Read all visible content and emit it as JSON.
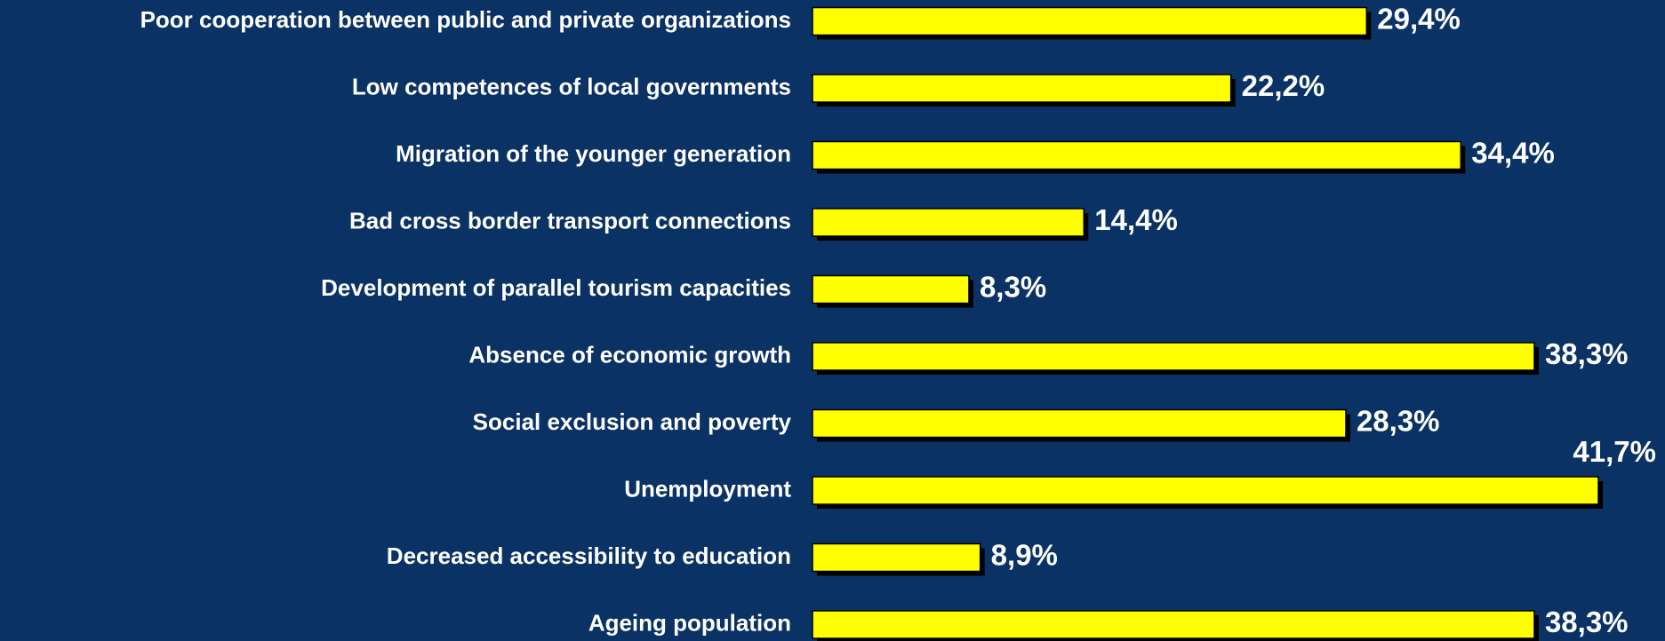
{
  "chart_data": {
    "type": "bar",
    "orientation": "horizontal",
    "categories": [
      "Poor cooperation between public and private organizations",
      "Low competences of local governments",
      "Migration of the younger generation",
      "Bad cross border transport connections",
      "Development of parallel tourism capacities",
      "Absence of economic growth",
      "Social exclusion and poverty",
      "Unemployment",
      "Decreased accessibility to education",
      "Ageing population"
    ],
    "values": [
      29.4,
      22.2,
      34.4,
      14.4,
      8.3,
      38.3,
      28.3,
      41.7,
      8.9,
      38.3
    ],
    "value_labels": [
      "29,4%",
      "22,2%",
      "34,4%",
      "14,4%",
      "8,3%",
      "38,3%",
      "28,3%",
      "41,7%",
      "8,9%",
      "38,3%"
    ],
    "color": "#ffff00"
  }
}
